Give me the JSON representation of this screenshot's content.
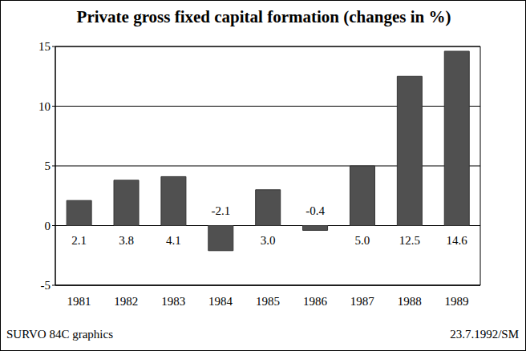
{
  "chart_data": {
    "type": "bar",
    "title": "Private gross fixed capital formation (changes in %)",
    "categories": [
      "1981",
      "1982",
      "1983",
      "1984",
      "1985",
      "1986",
      "1987",
      "1988",
      "1989"
    ],
    "values": [
      2.1,
      3.8,
      4.1,
      -2.1,
      3.0,
      -0.4,
      5.0,
      12.5,
      14.6
    ],
    "value_labels": [
      "2.1",
      "3.8",
      "4.1",
      "-2.1",
      "3.0",
      "-0.4",
      "5.0",
      "12.5",
      "14.6"
    ],
    "color": "#505050",
    "ylim": [
      -5,
      15
    ],
    "yticks": [
      -5,
      0,
      5,
      10,
      15
    ],
    "grid": true,
    "data_labels": true,
    "annotations": [
      "SURVO 84C graphics",
      "23.7.1992/SM"
    ]
  }
}
